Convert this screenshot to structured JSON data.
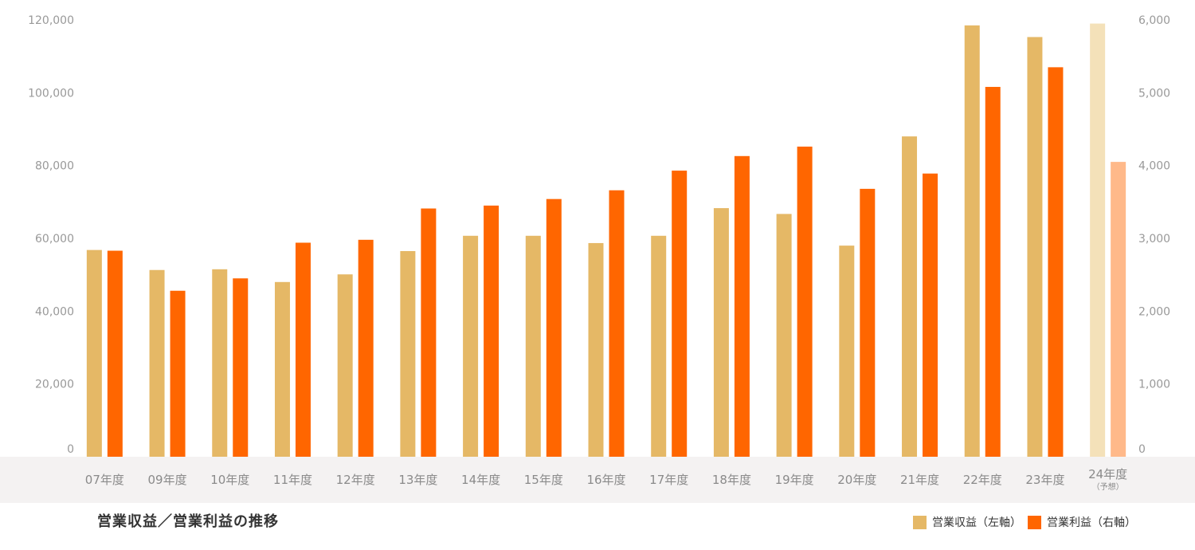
{
  "chart_data": {
    "type": "bar",
    "title": "営業収益／営業利益の推移",
    "categories": [
      "07年度",
      "09年度",
      "10年度",
      "11年度",
      "12年度",
      "13年度",
      "14年度",
      "15年度",
      "16年度",
      "17年度",
      "18年度",
      "19年度",
      "20年度",
      "21年度",
      "22年度",
      "23年度",
      "24年度"
    ],
    "category_notes": {
      "24年度": "（予想）"
    },
    "forecast_category": "24年度",
    "series": [
      {
        "name": "営業収益（左軸）",
        "axis": "left",
        "color": "#e5b866",
        "forecast_color": "#f4e1b9",
        "values": [
          56800,
          51300,
          51500,
          48000,
          50100,
          56500,
          60700,
          60700,
          58700,
          60700,
          68300,
          66700,
          58000,
          88000,
          118500,
          115300,
          119000
        ]
      },
      {
        "name": "営業利益（右軸）",
        "axis": "right",
        "color": "#ff6600",
        "forecast_color": "#ffb98a",
        "values": [
          2830,
          2280,
          2450,
          2940,
          2980,
          3410,
          3450,
          3540,
          3660,
          3930,
          4130,
          4260,
          3680,
          3890,
          5080,
          5350,
          4050
        ]
      }
    ],
    "y_left": {
      "min": 0,
      "max": 120000,
      "ticks": [
        "0",
        "20,000",
        "40,000",
        "60,000",
        "80,000",
        "100,000",
        "120,000"
      ]
    },
    "y_right": {
      "min": 0,
      "max": 6000,
      "ticks": [
        "0",
        "1,000",
        "2,000",
        "3,000",
        "4,000",
        "5,000",
        "6,000"
      ]
    },
    "grid": false,
    "legend_position": "bottom-right",
    "axis_band_color": "#f4f2f2"
  },
  "legend": {
    "revenue_label": "営業収益（左軸）",
    "profit_label": "営業利益（右軸）",
    "revenue_color": "#e5b866",
    "profit_color": "#ff6600"
  }
}
